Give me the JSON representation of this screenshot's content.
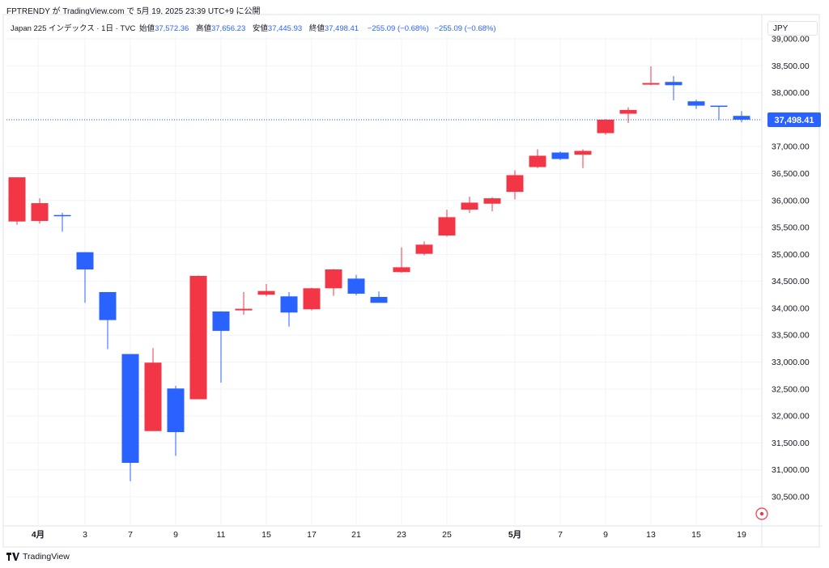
{
  "header": {
    "attribution": "FPTRENDY が TradingView.com で 5月 19, 2025 23:39 UTC+9 に公開"
  },
  "legend": {
    "symbol": "Japan 225 インデックス · 1日 · TVC",
    "open_label": "始値",
    "open": "37,572.36",
    "high_label": "高値",
    "high": "37,656.23",
    "low_label": "安値",
    "low": "37,445.93",
    "close_label": "終値",
    "close": "37,498.41",
    "change": "−255.09 (−0.68%)",
    "change2": "−255.09 (−0.68%)"
  },
  "currency": "JPY",
  "last_price_label": "37,498.41",
  "footer": {
    "brand": "TradingView"
  },
  "colors": {
    "up": "#f23645",
    "down": "#2962ff",
    "grid": "#f0f3fa",
    "axis_text": "#131722"
  },
  "chart_data": {
    "type": "candlestick",
    "x_tick_labels": [
      "4月",
      "3",
      "7",
      "9",
      "11",
      "15",
      "17",
      "21",
      "23",
      "25",
      "5月",
      "7",
      "9",
      "13",
      "15",
      "19"
    ],
    "y_tick_labels": [
      "30,500.00",
      "31,000.00",
      "31,500.00",
      "32,000.00",
      "32,500.00",
      "33,000.00",
      "33,500.00",
      "34,000.00",
      "34,500.00",
      "35,000.00",
      "35,500.00",
      "36,000.00",
      "36,500.00",
      "37,000.00",
      "37,500.00",
      "38,000.00",
      "38,500.00",
      "39,000.00"
    ],
    "ylim": [
      30000,
      39100
    ],
    "last_price": 37498.41,
    "candles": [
      {
        "date": "3/31",
        "open": 35610,
        "high": 36430,
        "low": 35550,
        "close": 36430
      },
      {
        "date": "4/1",
        "open": 35620,
        "high": 36040,
        "low": 35570,
        "close": 35950
      },
      {
        "date": "4/2",
        "open": 35730,
        "high": 35770,
        "low": 35420,
        "close": 35710
      },
      {
        "date": "4/3",
        "open": 35040,
        "high": 35040,
        "low": 34100,
        "close": 34720
      },
      {
        "date": "4/4",
        "open": 34300,
        "high": 34300,
        "low": 33240,
        "close": 33780
      },
      {
        "date": "4/7",
        "open": 33150,
        "high": 33150,
        "low": 30790,
        "close": 31130
      },
      {
        "date": "4/8",
        "open": 31720,
        "high": 33260,
        "low": 31720,
        "close": 32990
      },
      {
        "date": "4/9",
        "open": 32510,
        "high": 32560,
        "low": 31260,
        "close": 31700
      },
      {
        "date": "4/10",
        "open": 32310,
        "high": 34610,
        "low": 32310,
        "close": 34600
      },
      {
        "date": "4/11",
        "open": 33940,
        "high": 33940,
        "low": 32620,
        "close": 33580
      },
      {
        "date": "4/14",
        "open": 33960,
        "high": 34300,
        "low": 33880,
        "close": 33990
      },
      {
        "date": "4/15",
        "open": 34250,
        "high": 34450,
        "low": 34220,
        "close": 34320
      },
      {
        "date": "4/16",
        "open": 34220,
        "high": 34300,
        "low": 33660,
        "close": 33920
      },
      {
        "date": "4/17",
        "open": 33980,
        "high": 34380,
        "low": 33960,
        "close": 34370
      },
      {
        "date": "4/18",
        "open": 34370,
        "high": 34730,
        "low": 34230,
        "close": 34720
      },
      {
        "date": "4/21",
        "open": 34550,
        "high": 34620,
        "low": 34240,
        "close": 34270
      },
      {
        "date": "4/22",
        "open": 34210,
        "high": 34310,
        "low": 34100,
        "close": 34100
      },
      {
        "date": "4/23",
        "open": 34670,
        "high": 35130,
        "low": 34660,
        "close": 34760
      },
      {
        "date": "4/24",
        "open": 35010,
        "high": 35240,
        "low": 34980,
        "close": 35180
      },
      {
        "date": "4/25",
        "open": 35350,
        "high": 35830,
        "low": 35330,
        "close": 35690
      },
      {
        "date": "4/28",
        "open": 35830,
        "high": 36070,
        "low": 35770,
        "close": 35960
      },
      {
        "date": "4/30",
        "open": 35940,
        "high": 36060,
        "low": 35800,
        "close": 36040
      },
      {
        "date": "5/1",
        "open": 36160,
        "high": 36560,
        "low": 36020,
        "close": 36470
      },
      {
        "date": "5/2",
        "open": 36620,
        "high": 36950,
        "low": 36600,
        "close": 36830
      },
      {
        "date": "5/7",
        "open": 36890,
        "high": 36910,
        "low": 36750,
        "close": 36770
      },
      {
        "date": "5/8",
        "open": 36850,
        "high": 36950,
        "low": 36600,
        "close": 36920
      },
      {
        "date": "5/9",
        "open": 37250,
        "high": 37510,
        "low": 37220,
        "close": 37500
      },
      {
        "date": "5/12",
        "open": 37610,
        "high": 37730,
        "low": 37440,
        "close": 37680
      },
      {
        "date": "5/13",
        "open": 38150,
        "high": 38490,
        "low": 38140,
        "close": 38180
      },
      {
        "date": "5/14",
        "open": 38200,
        "high": 38310,
        "low": 37860,
        "close": 38140
      },
      {
        "date": "5/15",
        "open": 37840,
        "high": 37870,
        "low": 37700,
        "close": 37760
      },
      {
        "date": "5/16",
        "open": 37760,
        "high": 37760,
        "low": 37490,
        "close": 37750
      },
      {
        "date": "5/19",
        "open": 37570,
        "high": 37660,
        "low": 37450,
        "close": 37500
      }
    ]
  }
}
